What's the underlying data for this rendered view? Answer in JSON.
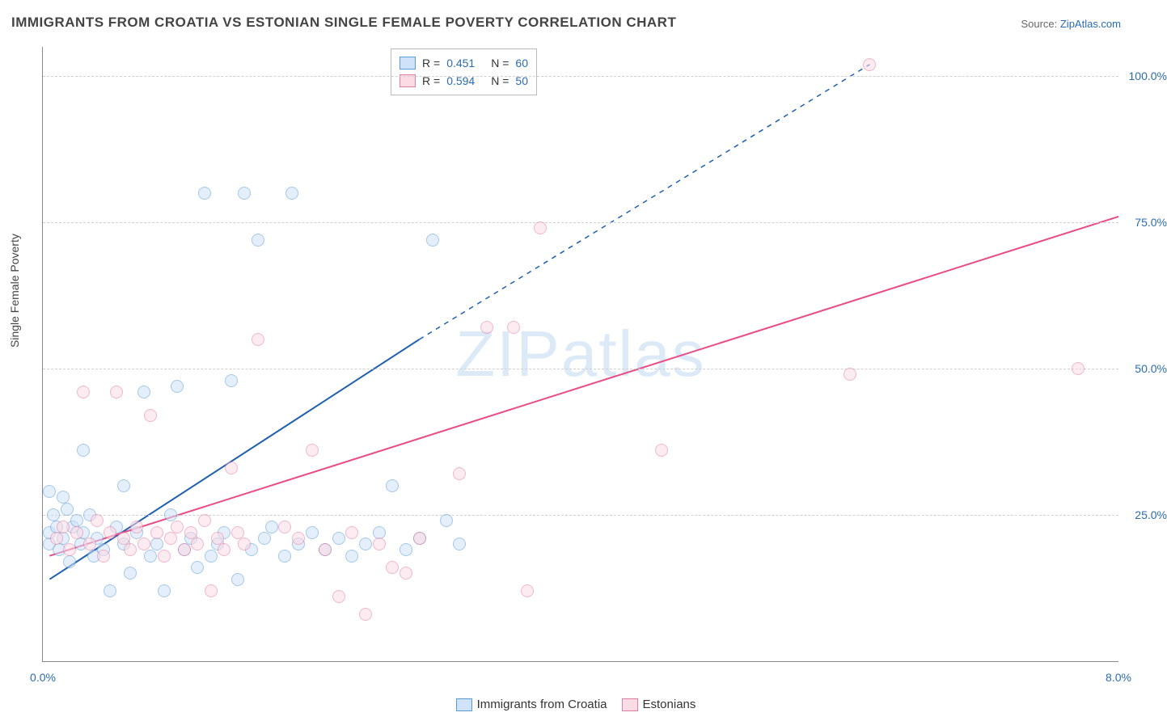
{
  "title": "IMMIGRANTS FROM CROATIA VS ESTONIAN SINGLE FEMALE POVERTY CORRELATION CHART",
  "source_label": "Source: ",
  "source_name": "ZipAtlas.com",
  "watermark": "ZIPatlas",
  "ylabel": "Single Female Poverty",
  "chart": {
    "type": "scatter",
    "background_color": "#ffffff",
    "grid_color": "#d0d0d0",
    "axis_color": "#888888",
    "text_color": "#444444",
    "tick_color": "#2b6cb0",
    "xlim": [
      0,
      8
    ],
    "ylim": [
      0,
      105
    ],
    "xticks": [
      {
        "v": 0,
        "label": "0.0%"
      },
      {
        "v": 8,
        "label": "8.0%"
      }
    ],
    "yticks": [
      {
        "v": 25,
        "label": "25.0%"
      },
      {
        "v": 50,
        "label": "50.0%"
      },
      {
        "v": 75,
        "label": "75.0%"
      },
      {
        "v": 100,
        "label": "100.0%"
      }
    ],
    "marker_radius": 8,
    "marker_opacity": 0.55,
    "series": [
      {
        "name": "Immigrants from Croatia",
        "fill": "#cfe2f8",
        "stroke": "#5b9bd5",
        "line_color": "#1f5fb0",
        "line_width": 2,
        "R": "0.451",
        "N": "60",
        "trend_solid": {
          "x1": 0.05,
          "y1": 14,
          "x2": 2.8,
          "y2": 55
        },
        "trend_dashed": {
          "x1": 2.8,
          "y1": 55,
          "x2": 6.15,
          "y2": 102
        },
        "points": [
          [
            0.05,
            20
          ],
          [
            0.05,
            22
          ],
          [
            0.08,
            25
          ],
          [
            0.1,
            23
          ],
          [
            0.12,
            19
          ],
          [
            0.15,
            21
          ],
          [
            0.18,
            26
          ],
          [
            0.2,
            17
          ],
          [
            0.22,
            23
          ],
          [
            0.25,
            24
          ],
          [
            0.28,
            20
          ],
          [
            0.3,
            22
          ],
          [
            0.35,
            25
          ],
          [
            0.38,
            18
          ],
          [
            0.4,
            21
          ],
          [
            0.45,
            19
          ],
          [
            0.5,
            12
          ],
          [
            0.55,
            23
          ],
          [
            0.6,
            20
          ],
          [
            0.65,
            15
          ],
          [
            0.7,
            22
          ],
          [
            0.75,
            46
          ],
          [
            0.8,
            18
          ],
          [
            0.85,
            20
          ],
          [
            0.9,
            12
          ],
          [
            0.95,
            25
          ],
          [
            1.0,
            47
          ],
          [
            1.05,
            19
          ],
          [
            1.1,
            21
          ],
          [
            1.15,
            16
          ],
          [
            1.2,
            80
          ],
          [
            1.25,
            18
          ],
          [
            1.3,
            20
          ],
          [
            1.35,
            22
          ],
          [
            1.4,
            48
          ],
          [
            1.45,
            14
          ],
          [
            1.5,
            80
          ],
          [
            1.55,
            19
          ],
          [
            1.6,
            72
          ],
          [
            1.65,
            21
          ],
          [
            1.7,
            23
          ],
          [
            1.8,
            18
          ],
          [
            1.85,
            80
          ],
          [
            1.9,
            20
          ],
          [
            2.0,
            22
          ],
          [
            2.1,
            19
          ],
          [
            2.2,
            21
          ],
          [
            2.3,
            18
          ],
          [
            2.4,
            20
          ],
          [
            2.5,
            22
          ],
          [
            2.6,
            30
          ],
          [
            2.7,
            19
          ],
          [
            2.8,
            21
          ],
          [
            2.9,
            72
          ],
          [
            3.0,
            24
          ],
          [
            3.1,
            20
          ],
          [
            0.05,
            29
          ],
          [
            0.3,
            36
          ],
          [
            0.15,
            28
          ],
          [
            0.6,
            30
          ]
        ]
      },
      {
        "name": "Estonians",
        "fill": "#fbdbe4",
        "stroke": "#e67ca1",
        "line_color": "#e94b86",
        "line_width": 2,
        "R": "0.594",
        "N": "50",
        "trend_solid": {
          "x1": 0.05,
          "y1": 18,
          "x2": 8.0,
          "y2": 76
        },
        "trend_dashed": null,
        "points": [
          [
            0.1,
            21
          ],
          [
            0.15,
            23
          ],
          [
            0.2,
            19
          ],
          [
            0.25,
            22
          ],
          [
            0.3,
            46
          ],
          [
            0.35,
            20
          ],
          [
            0.4,
            24
          ],
          [
            0.45,
            18
          ],
          [
            0.5,
            22
          ],
          [
            0.55,
            46
          ],
          [
            0.6,
            21
          ],
          [
            0.65,
            19
          ],
          [
            0.7,
            23
          ],
          [
            0.75,
            20
          ],
          [
            0.8,
            42
          ],
          [
            0.85,
            22
          ],
          [
            0.9,
            18
          ],
          [
            0.95,
            21
          ],
          [
            1.0,
            23
          ],
          [
            1.05,
            19
          ],
          [
            1.1,
            22
          ],
          [
            1.15,
            20
          ],
          [
            1.2,
            24
          ],
          [
            1.25,
            12
          ],
          [
            1.3,
            21
          ],
          [
            1.35,
            19
          ],
          [
            1.4,
            33
          ],
          [
            1.45,
            22
          ],
          [
            1.5,
            20
          ],
          [
            1.6,
            55
          ],
          [
            1.8,
            23
          ],
          [
            1.9,
            21
          ],
          [
            2.0,
            36
          ],
          [
            2.1,
            19
          ],
          [
            2.2,
            11
          ],
          [
            2.3,
            22
          ],
          [
            2.4,
            8
          ],
          [
            2.5,
            20
          ],
          [
            2.6,
            16
          ],
          [
            2.7,
            15
          ],
          [
            2.8,
            21
          ],
          [
            3.1,
            32
          ],
          [
            3.3,
            57
          ],
          [
            3.5,
            57
          ],
          [
            3.6,
            12
          ],
          [
            3.7,
            74
          ],
          [
            4.6,
            36
          ],
          [
            6.0,
            49
          ],
          [
            6.15,
            102
          ],
          [
            7.7,
            50
          ]
        ]
      }
    ]
  },
  "legend_bottom": [
    {
      "label": "Immigrants from Croatia",
      "fill": "#cfe2f8",
      "stroke": "#5b9bd5"
    },
    {
      "label": "Estonians",
      "fill": "#fbdbe4",
      "stroke": "#e67ca1"
    }
  ]
}
